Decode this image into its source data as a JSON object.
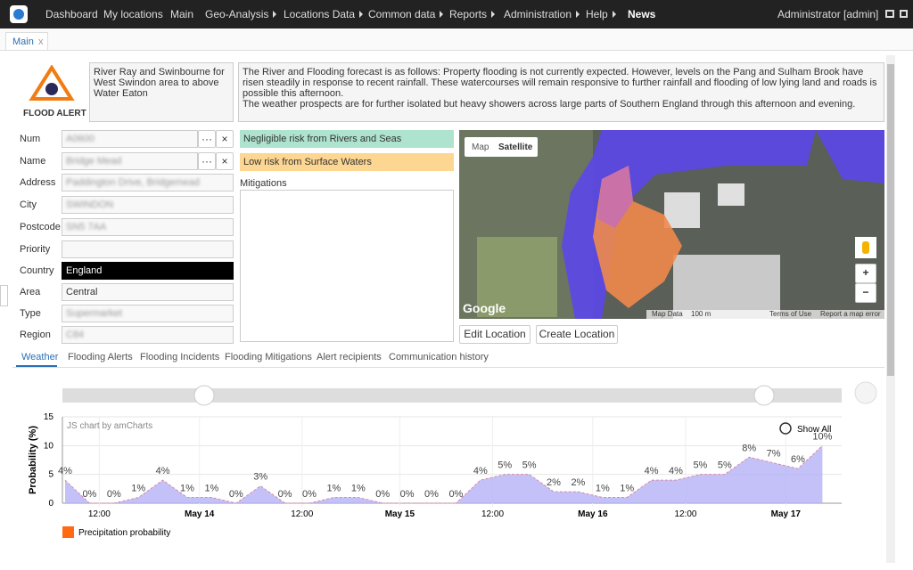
{
  "nav": {
    "items": [
      "Dashboard",
      "My locations",
      "Main",
      "Geo-Analysis",
      "Locations Data",
      "Common data",
      "Reports",
      "Administration",
      "Help",
      "News"
    ],
    "user": "Administrator [admin]"
  },
  "tab": "Main",
  "alert": {
    "badge": "FLOOD ALERT",
    "area": "River Ray and Swinbourne for West Swindon area to above Water Eaton",
    "forecast": [
      "The River and Flooding forecast is as follows: Property flooding is not currently expected. However, levels on the Pang and Sulham Brook have risen steadily in response to recent rainfall. These watercourses will remain responsive to further rainfall and flooding of low lying land and roads is possible this afternoon.",
      "The weather prospects are for further isolated but heavy showers across large parts of Southern England through this afternoon and evening."
    ]
  },
  "fields": [
    {
      "label": "Num",
      "value": "A0600"
    },
    {
      "label": "Name",
      "value": "Bridge Mead"
    },
    {
      "label": "Address",
      "value": "Paddington Drive, Bridgemead"
    },
    {
      "label": "City",
      "value": "SWINDON"
    },
    {
      "label": "Postcode",
      "value": "SN5 7AA"
    },
    {
      "label": "Priority"
    },
    {
      "label": "Country",
      "value": "England"
    },
    {
      "label": "Area",
      "value": "Central"
    },
    {
      "label": "Type",
      "value": "Supermarket"
    },
    {
      "label": "Region",
      "value": "C84"
    }
  ],
  "risks": [
    "Negligible risk from Rivers and Seas",
    "Low risk from Surface Waters"
  ],
  "mitigations": "Mitigations",
  "map": {
    "buttons": [
      "Map",
      "Satellite"
    ],
    "logo": "Google",
    "footer": [
      "Map Data",
      "100 m",
      "Terms of Use",
      "Report a map error"
    ]
  },
  "buttons": [
    "Edit Location",
    "Create Location"
  ],
  "subtabs": [
    "Weather",
    "Flooding Alerts",
    "Flooding Incidents",
    "Flooding Mitigations",
    "Alert recipients",
    "Communication history"
  ],
  "chart_data": {
    "type": "area",
    "credit": "JS chart by amCharts",
    "zoom": "Show All",
    "ylabel": "Probability (%)",
    "ylim": [
      0,
      15
    ],
    "yticks": [
      0,
      5,
      10,
      15
    ],
    "grid": true,
    "xticks": [
      {
        "value": 1.4,
        "label": "12:00"
      },
      {
        "value": 5.5,
        "label": "May 14"
      },
      {
        "value": 9.7,
        "label": "12:00"
      },
      {
        "value": 13.7,
        "label": "May 15"
      },
      {
        "value": 17.5,
        "label": "12:00"
      },
      {
        "value": 21.6,
        "label": "May 16"
      },
      {
        "value": 25.4,
        "label": "12:00"
      },
      {
        "value": 29.5,
        "label": "May 17"
      }
    ],
    "series": [
      {
        "name": "Precipitation probability",
        "color": "#b4b1f6",
        "line_color": "#d98aa8",
        "legend_color": "#ff6a13",
        "values": [
          4,
          0,
          0,
          1,
          4,
          1,
          1,
          0,
          3,
          0,
          0,
          1,
          1,
          0,
          0,
          0,
          0,
          4,
          5,
          5,
          2,
          2,
          1,
          1,
          4,
          4,
          5,
          5,
          8,
          7,
          6,
          10
        ],
        "value_labels": [
          "4%",
          "0%",
          "0%",
          "1%",
          "4%",
          "1%",
          "1%",
          "0%",
          "3%",
          "0%",
          "0%",
          "1%",
          "1%",
          "0%",
          "0%",
          "0%",
          "0%",
          "4%",
          "5%",
          "5%",
          "2%",
          "2%",
          "1%",
          "1%",
          "4%",
          "4%",
          "5%",
          "5%",
          "8%",
          "7%",
          "6%",
          "10%"
        ]
      }
    ]
  }
}
